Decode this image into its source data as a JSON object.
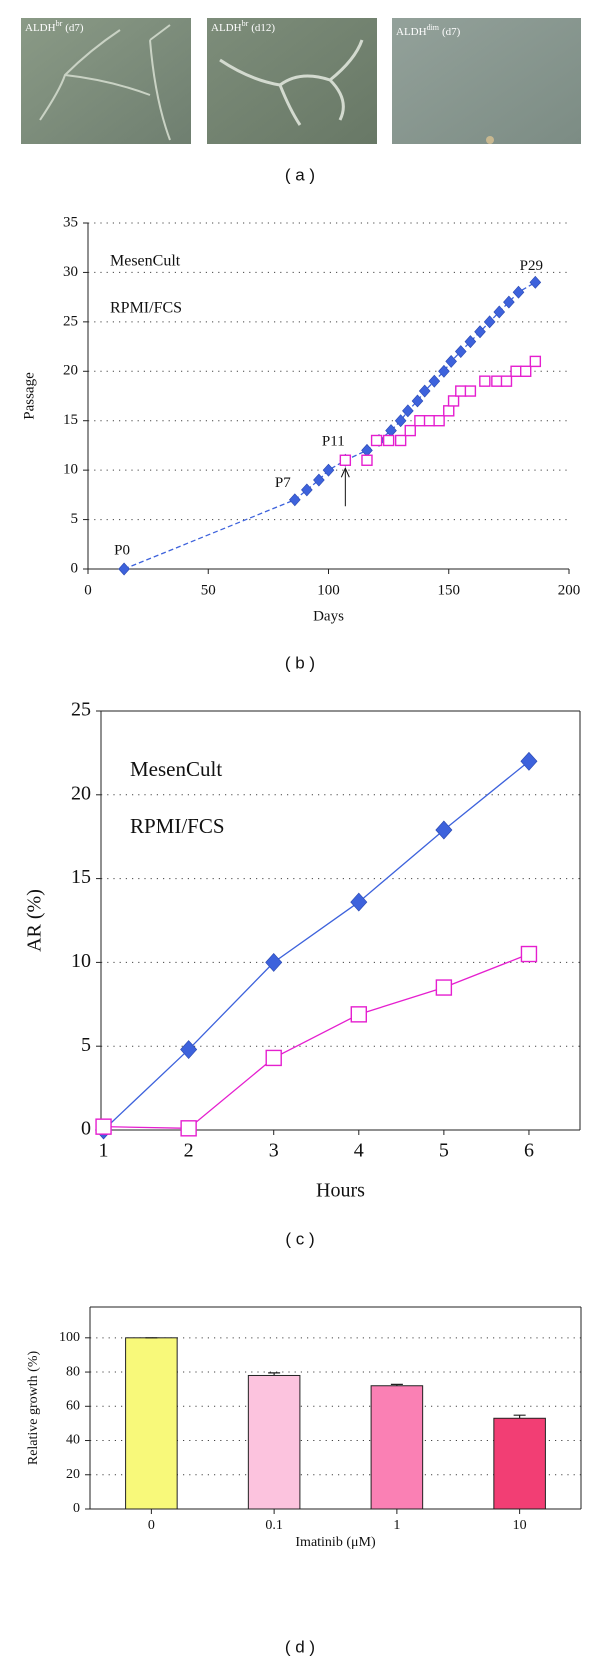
{
  "panel_a": {
    "images": [
      {
        "label": {
          "base": "ALDH",
          "sup": "br",
          "rest": "(d7)"
        }
      },
      {
        "label": {
          "base": "ALDH",
          "sup": "br",
          "rest": "(d12)"
        }
      },
      {
        "label": {
          "base": "ALDH",
          "sup": "dim",
          "rest": "(d7)"
        }
      }
    ],
    "caption": "( a )"
  },
  "chart_data": [
    {
      "type": "line",
      "caption": "( b )",
      "x_label": "Days",
      "y_label": "Passage",
      "xlim": [
        0,
        200
      ],
      "xticks": [
        0,
        50,
        100,
        150,
        200
      ],
      "ylim": [
        0,
        35
      ],
      "yticks": [
        0,
        5,
        10,
        15,
        20,
        25,
        30,
        35
      ],
      "grid": true,
      "series": [
        {
          "name": "MesenCult",
          "color": "#3d62dc",
          "marker": "diamond",
          "line_style": "dashed",
          "x": [
            15,
            86,
            91,
            96,
            100,
            107,
            116,
            121,
            126,
            130,
            133,
            137,
            140,
            144,
            148,
            151,
            155,
            159,
            163,
            167,
            171,
            175,
            179,
            186
          ],
          "values": [
            0,
            7,
            8,
            9,
            10,
            11,
            12,
            13,
            14,
            15,
            16,
            17,
            18,
            19,
            20,
            21,
            22,
            23,
            24,
            25,
            26,
            27,
            28,
            29
          ]
        },
        {
          "name": "RPMI/FCS",
          "color": "#e51fcf",
          "marker": "open-square",
          "line_style": "none",
          "x": [
            107,
            116,
            120,
            125,
            130,
            134,
            138,
            142,
            146,
            150,
            152,
            155,
            159,
            165,
            170,
            174,
            178,
            182,
            186
          ],
          "values": [
            11,
            11,
            13,
            13,
            13,
            14,
            15,
            15,
            15,
            16,
            17,
            18,
            18,
            19,
            19,
            19,
            20,
            20,
            21
          ]
        }
      ],
      "annotations": [
        "P0",
        "P7",
        "P11",
        "P29"
      ]
    },
    {
      "type": "line",
      "caption": "( c )",
      "x_label": "Hours",
      "y_label": "AR (%)",
      "xlim": [
        0.97,
        6.6
      ],
      "xticks": [
        1,
        2,
        3,
        4,
        5,
        6
      ],
      "ylim": [
        0,
        25
      ],
      "yticks": [
        0,
        5,
        10,
        15,
        20,
        25
      ],
      "grid": true,
      "series": [
        {
          "name": "MesenCult",
          "color": "#3d62dc",
          "marker": "diamond",
          "line_style": "solid",
          "x": [
            1,
            2,
            3,
            4,
            5,
            6
          ],
          "values": [
            0,
            4.8,
            10,
            13.6,
            17.9,
            22
          ]
        },
        {
          "name": "RPMI/FCS",
          "color": "#e51fcf",
          "marker": "open-square",
          "line_style": "solid",
          "x": [
            1,
            2,
            3,
            4,
            5,
            6
          ],
          "values": [
            0.2,
            0.1,
            4.3,
            6.9,
            8.5,
            10.5
          ]
        }
      ]
    },
    {
      "type": "bar",
      "caption": "( d )",
      "x_label": "Imatinib (μM)",
      "y_label": "Relative growth (%)",
      "categories": [
        "0",
        "0.1",
        "1",
        "10"
      ],
      "values": [
        100,
        78,
        72,
        53
      ],
      "errors": [
        0,
        1.5,
        0.8,
        1.8
      ],
      "colors": [
        "#f8f97a",
        "#fcc3de",
        "#fa80b4",
        "#f23e74"
      ],
      "ylim": [
        0,
        118
      ],
      "yticks": [
        0,
        20,
        40,
        60,
        80,
        100
      ],
      "grid": true
    }
  ]
}
